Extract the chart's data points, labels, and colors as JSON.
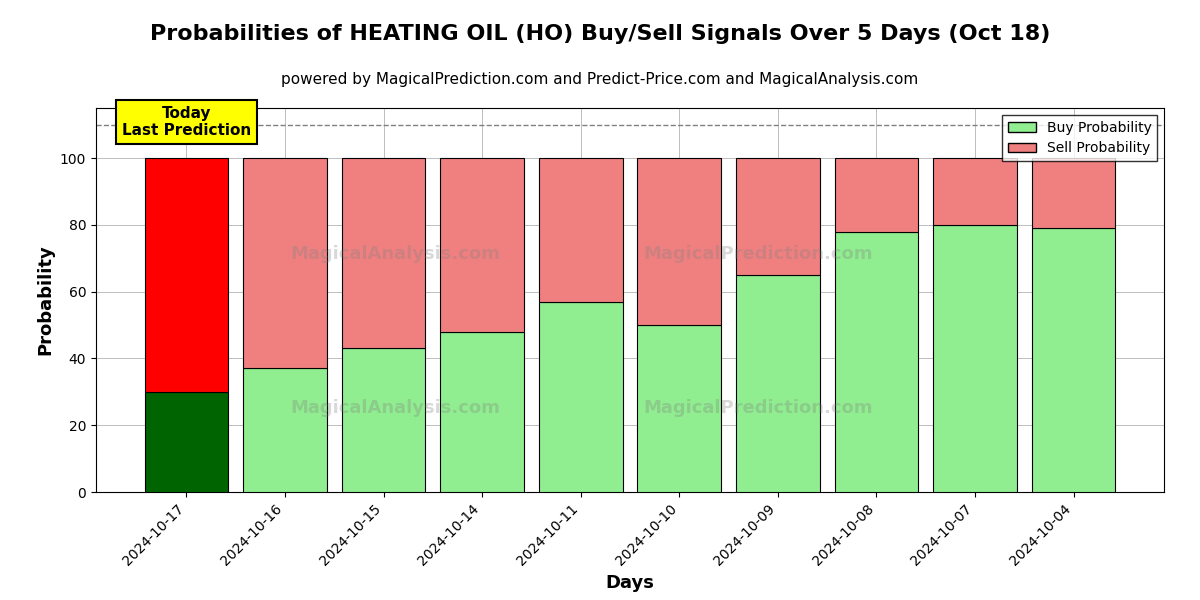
{
  "title": "Probabilities of HEATING OIL (HO) Buy/Sell Signals Over 5 Days (Oct 18)",
  "subtitle": "powered by MagicalPrediction.com and Predict-Price.com and MagicalAnalysis.com",
  "xlabel": "Days",
  "ylabel": "Probability",
  "categories": [
    "2024-10-17",
    "2024-10-16",
    "2024-10-15",
    "2024-10-14",
    "2024-10-11",
    "2024-10-10",
    "2024-10-09",
    "2024-10-08",
    "2024-10-07",
    "2024-10-04"
  ],
  "buy_values": [
    30,
    37,
    43,
    48,
    57,
    50,
    65,
    78,
    80,
    79
  ],
  "sell_values": [
    70,
    63,
    57,
    52,
    43,
    50,
    35,
    22,
    20,
    21
  ],
  "today_bar_index": 0,
  "today_buy_color": "#006400",
  "today_sell_color": "#FF0000",
  "normal_buy_color": "#90EE90",
  "normal_sell_color": "#F08080",
  "today_label_bg": "#FFFF00",
  "today_label_text": "Today\nLast Prediction",
  "dashed_line_y": 110,
  "ylim": [
    0,
    115
  ],
  "yticks": [
    0,
    20,
    40,
    60,
    80,
    100
  ],
  "legend_buy_label": "Buy Probability",
  "legend_sell_label": "Sell Probability",
  "title_fontsize": 16,
  "subtitle_fontsize": 11,
  "axis_label_fontsize": 13
}
